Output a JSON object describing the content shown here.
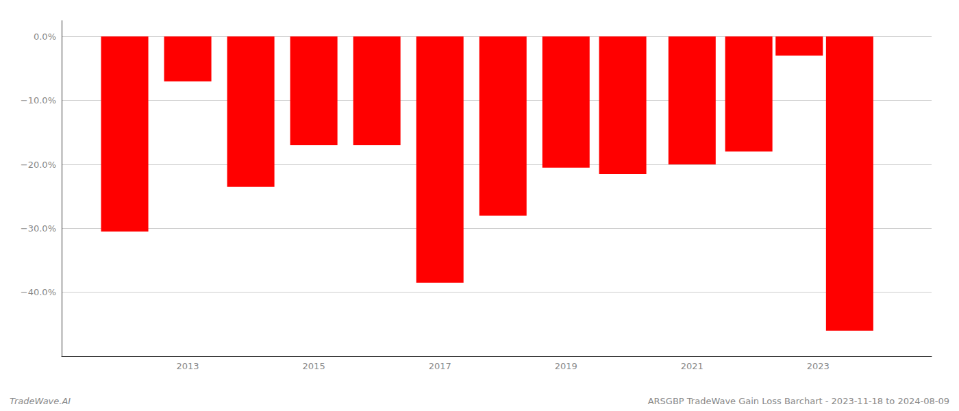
{
  "chart_data": {
    "type": "bar",
    "x": [
      2012,
      2013,
      2014,
      2015,
      2016,
      2017,
      2018,
      2019,
      2019.9,
      2021,
      2021.9,
      2022.7,
      2023.5
    ],
    "values": [
      -30.5,
      -7.0,
      -23.5,
      -17.0,
      -17.0,
      -38.5,
      -28.0,
      -20.5,
      -21.5,
      -20.0,
      -18.0,
      -3.0,
      -46.0
    ],
    "color": "#ff0000",
    "xlim": [
      2011.0,
      2024.8
    ],
    "xticks": [
      2013,
      2015,
      2017,
      2019,
      2021,
      2023
    ],
    "ylim": [
      -50,
      2.5
    ],
    "yticks": [
      {
        "value": 0,
        "label": "0.0%"
      },
      {
        "value": -10,
        "label": "−10.0%"
      },
      {
        "value": -20,
        "label": "−20.0%"
      },
      {
        "value": -30,
        "label": "−30.0%"
      },
      {
        "value": -40,
        "label": "−40.0%"
      }
    ],
    "grid": true,
    "annotations": [
      "TradeWave.AI",
      "ARSGBP TradeWave Gain Loss Barchart - 2023-11-18 to 2024-08-09"
    ]
  }
}
